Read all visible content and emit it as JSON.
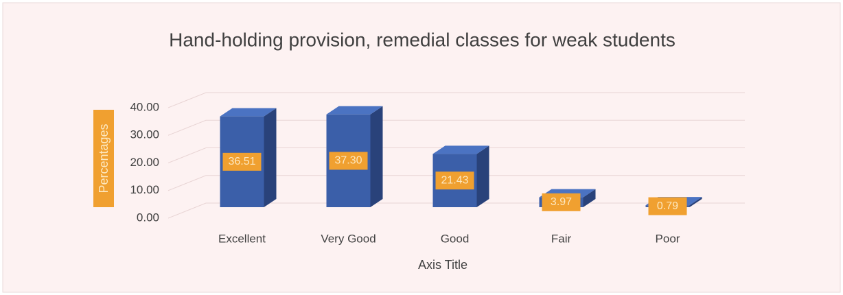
{
  "chart_data": {
    "type": "bar3d",
    "title": "Hand-holding provision, remedial classes for weak students",
    "x_label": "Axis Title",
    "y_label": "Percentages",
    "categories": [
      "Excellent",
      "Very Good",
      "Good",
      "Fair",
      "Poor"
    ],
    "values": [
      36.51,
      37.3,
      21.43,
      3.97,
      0.79
    ],
    "value_labels": [
      "36.51",
      "37.30",
      "21.43",
      "3.97",
      "0.79"
    ],
    "color": "#3b5fa9",
    "ylim": [
      0,
      40
    ],
    "yticks": [
      {
        "value": 0,
        "label": "0.00"
      },
      {
        "value": 10,
        "label": "10.00"
      },
      {
        "value": 20,
        "label": "20.00"
      },
      {
        "value": 30,
        "label": "30.00"
      },
      {
        "value": 40,
        "label": "40.00"
      }
    ],
    "grid": true
  }
}
